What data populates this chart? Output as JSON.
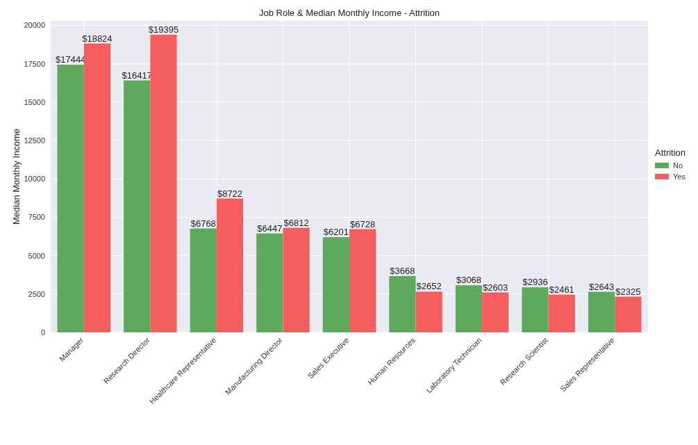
{
  "chart_data": {
    "type": "bar",
    "title": "Job Role & Median Monthly Income - Attrition",
    "ylabel": "Median Monthly Income",
    "legend_title": "Attrition",
    "categories": [
      "Manager",
      "Research Director",
      "Healthcare Representative",
      "Manufacturing Director",
      "Sales Executive",
      "Human Resources",
      "Laboratory Technician",
      "Research Scientist",
      "Sales Representative"
    ],
    "series": [
      {
        "name": "No",
        "color": "#5daa5d",
        "values": [
          17444,
          16417,
          6768,
          6447,
          6201,
          3668,
          3068,
          2936,
          2643
        ],
        "value_labels": [
          "$17444",
          "$16417",
          "$6768",
          "$6447",
          "$6201",
          "$3668",
          "$3068",
          "$2936",
          "$2643"
        ]
      },
      {
        "name": "Yes",
        "color": "#f65e5e",
        "values": [
          18824,
          19395,
          8722,
          6812,
          6728,
          2652,
          2603,
          2461,
          2325
        ],
        "value_labels": [
          "$18824",
          "$19395",
          "$8722",
          "$6812",
          "$6728",
          "$2652",
          "$2603",
          "$2461",
          "$2325"
        ]
      }
    ],
    "ylim": [
      0,
      20300
    ],
    "yticks": [
      0,
      2500,
      5000,
      7500,
      10000,
      12500,
      15000,
      17500,
      20000
    ],
    "grid": true,
    "legend": "right"
  }
}
